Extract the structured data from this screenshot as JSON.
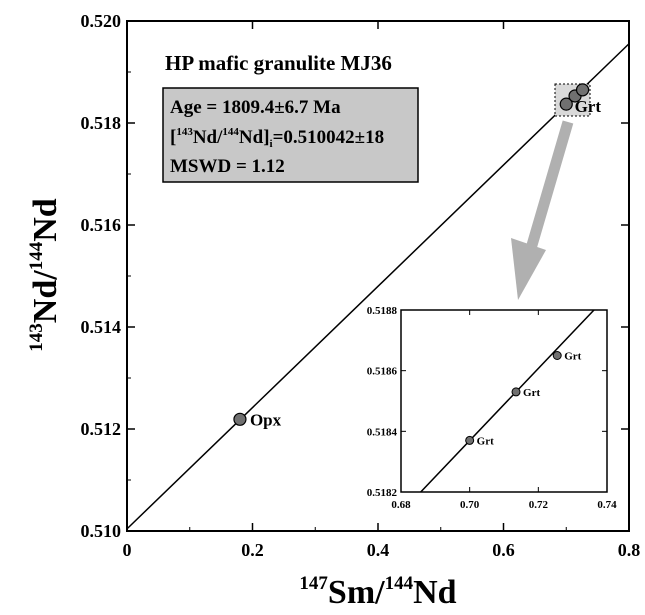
{
  "chart_data": {
    "type": "scatter",
    "title": "HP mafic granulite MJ36",
    "xlabel": {
      "sup1": "147",
      "base1": "Sm/",
      "sup2": "144",
      "base2": "Nd"
    },
    "ylabel": {
      "sup1": "143",
      "base1": "Nd/",
      "sup2": "144",
      "base2": "Nd"
    },
    "xlim": [
      0,
      0.8
    ],
    "ylim": [
      0.51,
      0.52
    ],
    "x_ticks": [
      "0",
      "0.2",
      "0.4",
      "0.6",
      "0.8"
    ],
    "y_ticks": [
      "0.510",
      "0.512",
      "0.514",
      "0.516",
      "0.518",
      "0.520"
    ],
    "stats": {
      "age": "Age = 1809.4±6.7 Ma",
      "initial_open": "[",
      "initial_sup1": "143",
      "initial_mid": "Nd/",
      "initial_sup2": "144",
      "initial_close": "Nd]",
      "initial_sub": "i",
      "initial_value": "=0.510042±18",
      "mswd": "MSWD = 1.12"
    },
    "isochron": {
      "x": [
        0,
        0.8
      ],
      "y": [
        0.510042,
        0.519554
      ]
    },
    "points": [
      {
        "label": "Opx",
        "x": 0.18,
        "y": 0.51219
      },
      {
        "label": "",
        "x": 0.7,
        "y": 0.51837
      },
      {
        "label": "",
        "x": 0.714,
        "y": 0.51853
      },
      {
        "label": "Grt",
        "x": 0.726,
        "y": 0.51865
      }
    ],
    "point_color": "#707070",
    "inset": {
      "xlim": [
        0.68,
        0.74
      ],
      "ylim": [
        0.5182,
        0.5188
      ],
      "x_ticks": [
        "0.68",
        "0.70",
        "0.72",
        "0.74"
      ],
      "y_ticks": [
        "0.5182",
        "0.5184",
        "0.5186",
        "0.5188"
      ],
      "points": [
        {
          "label": "Grt",
          "x": 0.7,
          "y": 0.51837
        },
        {
          "label": "Grt",
          "x": 0.7135,
          "y": 0.51853
        },
        {
          "label": "Grt",
          "x": 0.7255,
          "y": 0.51865
        }
      ]
    },
    "arrow_color": "#b0b0b0",
    "stats_box_color": "#c8c8c8"
  }
}
